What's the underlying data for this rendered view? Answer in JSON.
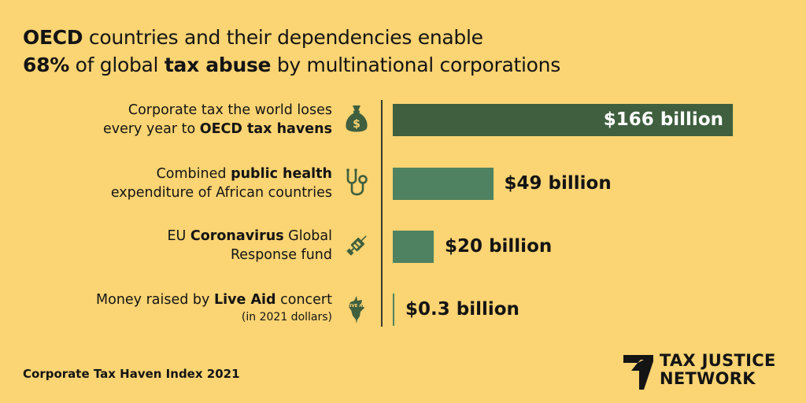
{
  "headline": {
    "line1_bold": "OECD",
    "line1_rest": " countries and their dependencies enable",
    "line2_bold_pct": "68%",
    "line2_mid": " of global ",
    "line2_bold_abuse": "tax abuse",
    "line2_rest": " by multinational corporations"
  },
  "colors": {
    "background": "#fbd473",
    "bar_dark": "#3f5f3e",
    "bar_mid": "#4f8260",
    "icon": "#3f5f3e"
  },
  "rows": [
    {
      "label_a": "Corporate tax the world loses",
      "label_b_pre": "every year to ",
      "label_b_bold": "OECD tax havens",
      "icon": "money-bag-icon"
    },
    {
      "label_a_pre": "Combined ",
      "label_a_bold": "public health",
      "label_b": "expenditure of African countries",
      "icon": "stethoscope-icon"
    },
    {
      "label_a_pre": "EU ",
      "label_a_bold": "Coronavirus",
      "label_a_post": " Global",
      "label_b": "Response fund",
      "icon": "syringe-icon"
    },
    {
      "label_a_pre": "Money raised by ",
      "label_a_bold": "Live Aid",
      "label_a_post": " concert",
      "label_b": "(in 2021 dollars)",
      "icon": "live-aid-icon",
      "icon_text": "LIVE AID"
    }
  ],
  "chart_data": {
    "type": "bar",
    "orientation": "horizontal",
    "unit": "billion USD",
    "values": [
      166,
      49,
      20,
      0.3
    ],
    "value_labels": [
      "$166 billion",
      "$49 billion",
      "$20 billion",
      "$0.3 billion"
    ],
    "xlim": [
      0,
      166
    ],
    "grid": false
  },
  "source": "Corporate Tax Haven Index 2021",
  "logo": {
    "line1": "TAX JUSTICE",
    "line2": "NETWORK"
  }
}
